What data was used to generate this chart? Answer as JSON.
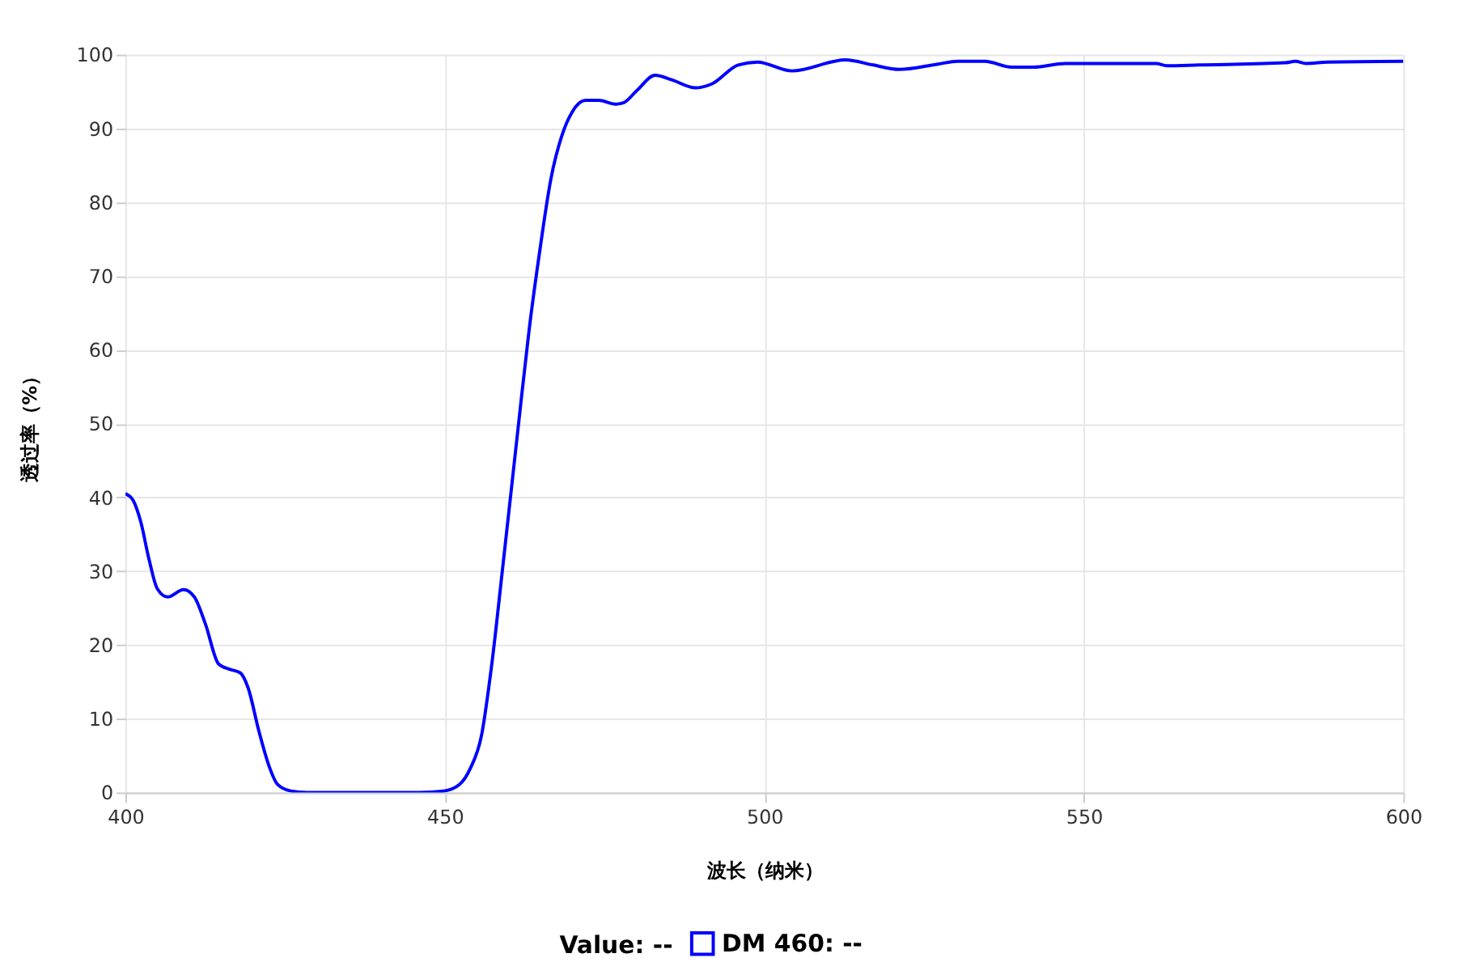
{
  "chart_data": {
    "type": "line",
    "xlabel": "波长（纳米）",
    "ylabel": "透过率（%）",
    "legend_title": "Value:  --",
    "xlim": [
      400,
      600
    ],
    "xticks": [
      400,
      450,
      500,
      550,
      600
    ],
    "ylim": [
      0,
      100
    ],
    "yticks": [
      0,
      10,
      20,
      30,
      40,
      50,
      60,
      70,
      80,
      90,
      100
    ],
    "grid": true,
    "legend": "bottom",
    "marker": "none",
    "line_style": "solid",
    "series": [
      {
        "name": "DM 460:  --",
        "color": "#0000ff",
        "x": [
          400,
          401.2,
          402.4,
          403.7,
          405,
          406.6,
          409.1,
          410.8,
          412.5,
          414.6,
          416.3,
          418,
          419.2,
          420.9,
          422.6,
          423.8,
          425.9,
          428.4,
          446,
          449.8,
          452.3,
          454,
          455.7,
          457.4,
          459,
          460.3,
          461.6,
          463.2,
          464.9,
          466.6,
          468.3,
          469.9,
          472,
          474.1,
          476.7,
          478,
          480,
          482.9,
          485.5,
          489.2,
          491.7,
          495.9,
          498.9,
          504.3,
          512.7,
          517,
          521.1,
          527,
          530.3,
          534.5,
          538.7,
          542.1,
          547.1,
          561.3,
          563,
          568,
          581.5,
          583.1,
          584.8,
          588.2,
          600
        ],
        "values": [
          40.5,
          39.6,
          36.7,
          31.6,
          27.6,
          26.5,
          27.5,
          26.5,
          22.9,
          17.4,
          16.7,
          16.2,
          14.2,
          8.3,
          3.3,
          1.1,
          0.2,
          0,
          0,
          0.2,
          1.1,
          3.3,
          7.6,
          17.8,
          30.1,
          40.3,
          50.5,
          62.8,
          73.7,
          83.2,
          89,
          92.2,
          93.8,
          93.8,
          93.3,
          93.5,
          95.1,
          97.2,
          96.6,
          95.5,
          96,
          98.6,
          99,
          97.8,
          99.3,
          98.6,
          98,
          98.7,
          99.1,
          99.1,
          98.3,
          98.3,
          98.8,
          98.8,
          98.5,
          98.6,
          98.9,
          99.1,
          98.8,
          99,
          99.1
        ]
      }
    ]
  }
}
